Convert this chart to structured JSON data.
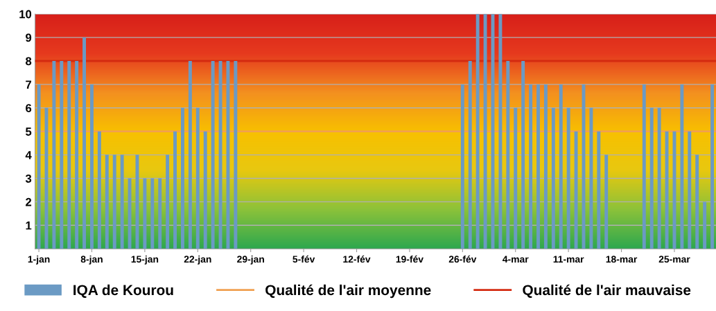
{
  "chart_data": {
    "type": "bar",
    "categories": [
      "1-jan",
      null,
      null,
      null,
      null,
      null,
      null,
      "8-jan",
      null,
      null,
      null,
      null,
      null,
      null,
      "15-jan",
      null,
      null,
      null,
      null,
      null,
      null,
      "22-jan",
      null,
      null,
      null,
      null,
      null,
      null,
      "29-jan",
      null,
      null,
      null,
      null,
      null,
      null,
      "5-fév",
      null,
      null,
      null,
      null,
      null,
      null,
      "12-fév",
      null,
      null,
      null,
      null,
      null,
      null,
      "19-fév",
      null,
      null,
      null,
      null,
      null,
      null,
      "26-fév",
      null,
      null,
      null,
      null,
      null,
      null,
      "4-mar",
      null,
      null,
      null,
      null,
      null,
      null,
      "11-mar",
      null,
      null,
      null,
      null,
      null,
      null,
      "18-mar",
      null,
      null,
      null,
      null,
      null,
      null,
      "25-mar",
      null,
      null,
      null,
      null,
      null
    ],
    "series": [
      {
        "name": "IQA de Kourou",
        "color": "#6b9ac4",
        "values": [
          7,
          6,
          8,
          8,
          8,
          8,
          9,
          7,
          5,
          4,
          4,
          4,
          3,
          4,
          3,
          3,
          3,
          4,
          5,
          6,
          8,
          6,
          5,
          8,
          8,
          8,
          8,
          null,
          null,
          null,
          null,
          null,
          null,
          null,
          null,
          null,
          null,
          null,
          null,
          null,
          null,
          null,
          null,
          null,
          null,
          null,
          null,
          null,
          null,
          null,
          null,
          null,
          null,
          null,
          null,
          null,
          7,
          8,
          10,
          10,
          10,
          10,
          8,
          6,
          8,
          7,
          7,
          7,
          6,
          7,
          6,
          5,
          7,
          6,
          5,
          4,
          null,
          null,
          null,
          null,
          7,
          6,
          6,
          5,
          5,
          7,
          5,
          4,
          2,
          7
        ]
      }
    ],
    "ylim": [
      0,
      10
    ],
    "yticks": [
      1,
      2,
      3,
      4,
      5,
      6,
      7,
      8,
      9,
      10
    ],
    "ref_lines": [
      {
        "axis": "y",
        "value": 5,
        "label": "Qualité de l'air moyenne",
        "color": "#f0a050"
      },
      {
        "axis": "y",
        "value": 8,
        "label": "Qualité de l'air mauvaise",
        "color": "#d42a10"
      }
    ],
    "grid": "y",
    "legend": "bottom"
  }
}
